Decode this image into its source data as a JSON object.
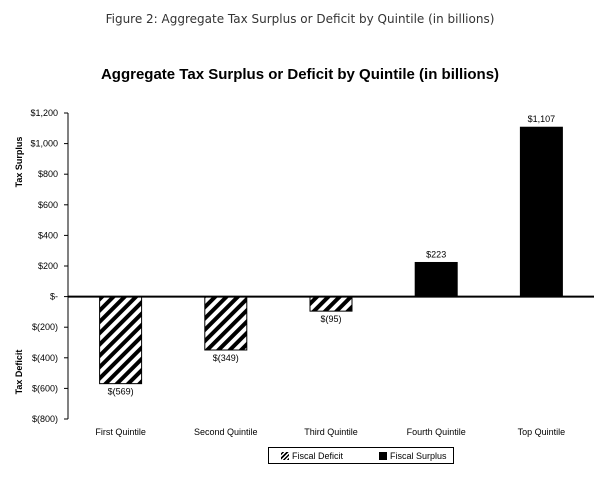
{
  "figure_caption": "Figure 2: Aggregate Tax Surplus or Deficit by Quintile (in billions)",
  "chart_data": {
    "type": "bar",
    "title": "Aggregate Tax Surplus or Deficit by Quintile (in billions)",
    "categories": [
      "First Quintile",
      "Second Quintile",
      "Third Quintile",
      "Fourth Quintile",
      "Top Quintile"
    ],
    "values": [
      -569,
      -349,
      -95,
      223,
      1107
    ],
    "data_labels": [
      "$(569)",
      "$(349)",
      "$(95)",
      "$223",
      "$1,107"
    ],
    "ylim": [
      -800,
      1200
    ],
    "y_ticks": [
      1200,
      1000,
      800,
      600,
      400,
      200,
      0,
      -200,
      -400,
      -600,
      -800
    ],
    "y_tick_labels": [
      "$1,200",
      "$1,000",
      "$800",
      "$600",
      "$400",
      "$200",
      "$-",
      "$(200)",
      "$(400)",
      "$(600)",
      "$(800)"
    ],
    "ylabel_positive": "Tax Surplus",
    "ylabel_negative": "Tax Deficit",
    "grid": false,
    "legend_position": "bottom-center",
    "series": [
      {
        "name": "Fiscal Deficit",
        "fill": "hatched",
        "color": "#000000"
      },
      {
        "name": "Fiscal Surplus",
        "fill": "solid",
        "color": "#000000"
      }
    ]
  }
}
